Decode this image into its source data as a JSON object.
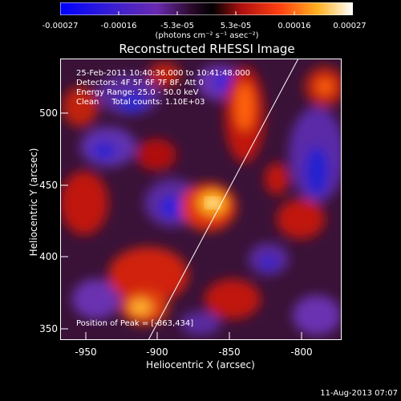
{
  "colorbar": {
    "ticks": [
      "-0.00027",
      "-0.00016",
      "-5.3e-05",
      "5.3e-05",
      "0.00016",
      "0.00027"
    ],
    "unit_label": "(photons cm⁻² s⁻¹ asec⁻²)",
    "min": -0.00027,
    "max": 0.00027
  },
  "title": "Reconstructed RHESSI Image",
  "info": {
    "time": "25-Feb-2011 10:40:36.000 to 10:41:48.000",
    "detectors": "Detectors: 4F 5F 6F 7F 8F, Att 0",
    "energy": "Energy Range: 25.0 - 50.0 keV",
    "clean": "Clean     Total counts: 1.10E+03"
  },
  "peak_text": "Position of Peak = [-863,434]",
  "axes": {
    "xlabel": "Heliocentric X (arcsec)",
    "ylabel": "Heliocentric Y (arcsec)",
    "xticks": [
      "-950",
      "-900",
      "-850",
      "-800"
    ],
    "yticks": [
      "500",
      "450",
      "400",
      "350"
    ],
    "xlim": [
      -968,
      -772
    ],
    "ylim": [
      342,
      538
    ]
  },
  "timestamp": "11-Aug-2013 07:07",
  "colors": {
    "background": "#000000",
    "text": "#ffffff"
  }
}
